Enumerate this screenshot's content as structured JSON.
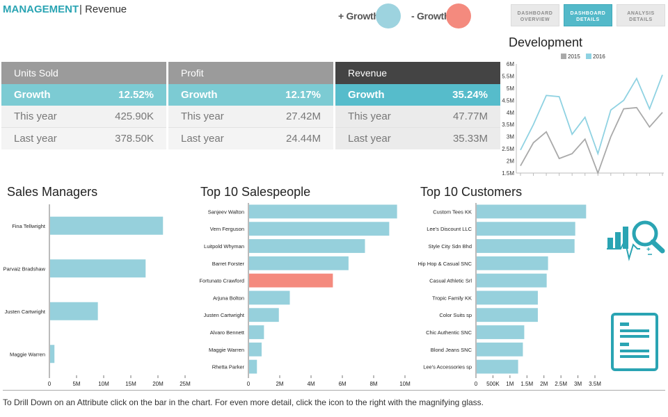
{
  "header": {
    "brand": "MANAGEMENT",
    "separator": "|",
    "page": "Revenue",
    "legend_plus": "+ Growth",
    "legend_minus": "- Growth",
    "plus_color": "#9dd3df",
    "minus_color": "#f48a7e"
  },
  "nav": [
    {
      "line1": "DASHBOARD",
      "line2": "OVERVIEW",
      "active": false
    },
    {
      "line1": "DASHBOARD",
      "line2": "DETAILS",
      "active": true
    },
    {
      "line1": "ANALYSIS",
      "line2": "DETAILS",
      "active": false
    }
  ],
  "kpis": [
    {
      "title": "Units Sold",
      "growth_label": "Growth",
      "growth": "12.52%",
      "this_year_label": "This year",
      "this_year": "425.90K",
      "last_year_label": "Last year",
      "last_year": "378.50K"
    },
    {
      "title": "Profit",
      "growth_label": "Growth",
      "growth": "12.17%",
      "this_year_label": "This year",
      "this_year": "27.42M",
      "last_year_label": "Last year",
      "last_year": "24.44M"
    },
    {
      "title": "Revenue",
      "growth_label": "Growth",
      "growth": "35.24%",
      "this_year_label": "This year",
      "this_year": "47.77M",
      "last_year_label": "Last year",
      "last_year": "35.33M"
    }
  ],
  "colors": {
    "bar": "#96d0dc",
    "bar_highlight": "#f48a7e",
    "header_gray": "#9b9b9b",
    "header_dark": "#444444",
    "line_2015": "#a9a9a9",
    "line_2016": "#8fd2e2",
    "icon_teal": "#2aa4b3"
  },
  "chart_data": [
    {
      "type": "line",
      "title": "Development",
      "series": [
        {
          "name": "2015",
          "values": [
            1.8,
            2.75,
            3.2,
            2.1,
            2.3,
            2.9,
            1.5,
            3.0,
            4.15,
            4.2,
            3.4,
            4.0
          ]
        },
        {
          "name": "2016",
          "values": [
            2.45,
            3.5,
            4.7,
            4.65,
            3.1,
            3.8,
            2.3,
            4.1,
            4.5,
            5.4,
            4.15,
            5.55
          ]
        }
      ],
      "ylim": [
        1.5,
        6
      ],
      "yticks": [
        "1.5M",
        "2M",
        "2.5M",
        "3M",
        "3.5M",
        "4M",
        "4.5M",
        "5M",
        "5.5M",
        "6M"
      ],
      "legend": "top-center"
    },
    {
      "type": "bar",
      "orientation": "horizontal",
      "title": "Sales Managers",
      "categories": [
        "Fina Tellwright",
        "Parvaiz Bradshaw",
        "Justen Cartwright",
        "Maggie Warren"
      ],
      "values": [
        20.8,
        17.6,
        8.8,
        0.8
      ],
      "xlim": [
        0,
        25
      ],
      "xticks": [
        "0",
        "5M",
        "10M",
        "15M",
        "20M",
        "25M"
      ]
    },
    {
      "type": "bar",
      "orientation": "horizontal",
      "title": "Top 10 Salespeople",
      "categories": [
        "Sanjeev Walton",
        "Vern Ferguson",
        "Luitpold Whyman",
        "Barret Forster",
        "Fortunato Crawford",
        "Arjuna Bolton",
        "Justen Cartwright",
        "Alvaro Bennett",
        "Maggie Warren",
        "Rhetta Parker"
      ],
      "values": [
        9.45,
        8.95,
        7.4,
        6.35,
        5.35,
        2.6,
        1.9,
        0.95,
        0.8,
        0.5
      ],
      "highlight": [
        false,
        false,
        false,
        false,
        true,
        false,
        false,
        false,
        false,
        false
      ],
      "xlim": [
        0,
        10
      ],
      "xticks": [
        "0",
        "2M",
        "4M",
        "6M",
        "8M",
        "10M"
      ]
    },
    {
      "type": "bar",
      "orientation": "horizontal",
      "title": "Top 10 Customers",
      "categories": [
        "Custom Tees KK",
        "Lee's Discount LLC",
        "Style City Sdn Bhd",
        "Hip Hop & Casual SNC",
        "Casual Athletic Srl",
        "Tropic Family KK",
        "Color Suits sp",
        "Chic Authentic SNC",
        "Blond Jeans SNC",
        "Lee's Accessories sp"
      ],
      "values": [
        3.22,
        2.9,
        2.88,
        2.1,
        2.06,
        1.8,
        1.8,
        1.4,
        1.36,
        1.22
      ],
      "xlim": [
        0,
        3.5
      ],
      "xticks": [
        "0",
        "500K",
        "1M",
        "1.5M",
        "2M",
        "2.5M",
        "3M",
        "3.5M"
      ]
    }
  ],
  "footer": "To Drill Down on an Attribute click on the bar in the chart. For even more detail, click the icon to the right with the magnifying glass.",
  "icons": [
    "analysis-magnifier-icon",
    "details-document-icon"
  ]
}
